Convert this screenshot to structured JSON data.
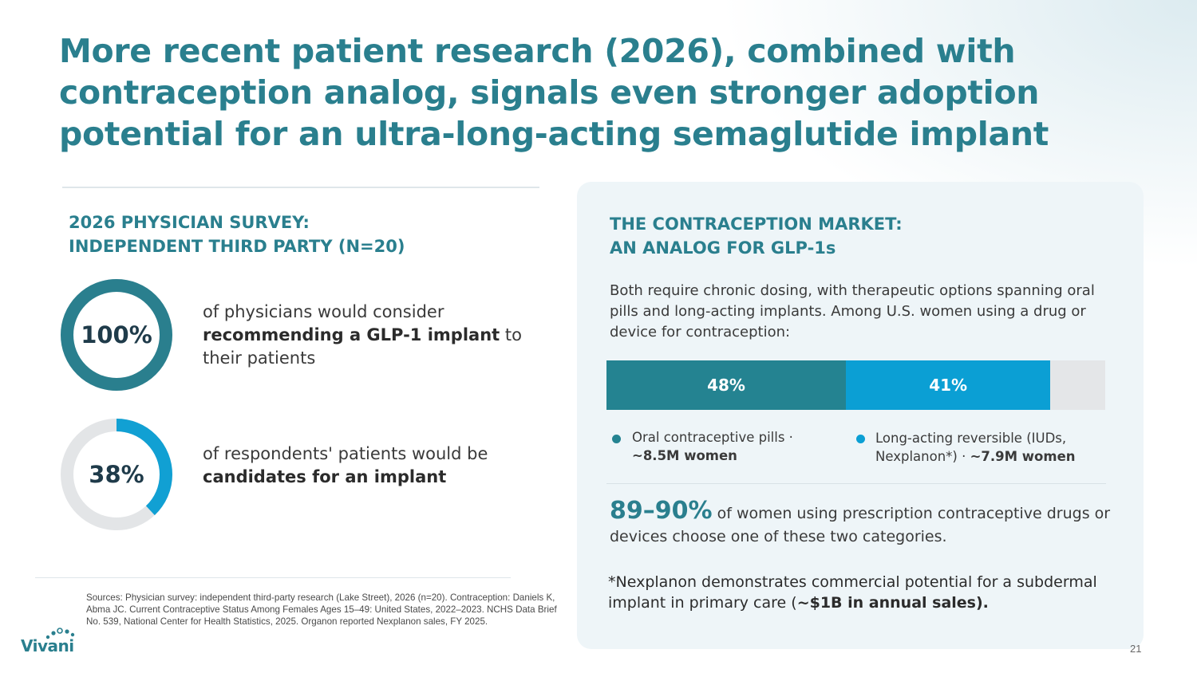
{
  "title": "More recent patient research (2026), combined with contraception analog, signals even stronger adoption potential for an ultra-long-acting semaglutide implant",
  "left": {
    "heading_line1": "2026 PHYSICIAN SURVEY:",
    "heading_line2": "INDEPENDENT THIRD PARTY (N=20)",
    "stats": [
      {
        "value_label": "100%",
        "value_fraction": 1.0,
        "text_pre": "of physicians would consider ",
        "text_bold": "recommending a GLP-1 implant",
        "text_post": " to their patients",
        "color": "#2a7f8e"
      },
      {
        "value_label": "38%",
        "value_fraction": 0.38,
        "text_pre": "of respondents' patients would be ",
        "text_bold": "candidates for an implant",
        "text_post": "",
        "color": "#11a0d3"
      }
    ],
    "sources": "Sources: Physician survey: independent third-party research (Lake Street), 2026 (n=20). Contraception: Daniels K, Abma JC. Current Contraceptive Status Among Females Ages 15–49: United States, 2022–2023. NCHS Data Brief No. 539, National Center for Health Statistics, 2025. Organon reported Nexplanon sales, FY 2025."
  },
  "logo": {
    "text": "Vivani"
  },
  "panel": {
    "heading_line1": "THE CONTRACEPTION MARKET:",
    "heading_line2": "AN ANALOG FOR GLP-1s",
    "intro": "Both require chronic dosing, with therapeutic options spanning oral pills and long-acting implants. Among U.S. women using a drug or device for contraception:",
    "bar": [
      {
        "label": "48%",
        "value": 48,
        "color": "#248391"
      },
      {
        "label": "41%",
        "value": 41,
        "color": "#0b9fd4"
      }
    ],
    "bar_remainder_color": "#e4e6e8",
    "legend": [
      {
        "text": "Oral contraceptive pills · ",
        "bold": "~8.5M women",
        "color": "#248391"
      },
      {
        "text": "Long-acting reversible (IUDs, Nexplanon*) · ",
        "bold": "~7.9M women",
        "color": "#0b9fd4"
      }
    ],
    "big_stat_number": "89–90%",
    "big_stat_text": " of women using prescription contraceptive drugs or devices choose one of these two categories.",
    "note_text": "*Nexplanon demonstrates commercial potential for a subdermal implant in primary care (",
    "note_bold": "~$1B in annual sales).",
    "note_end": ""
  },
  "page_number": "21"
}
